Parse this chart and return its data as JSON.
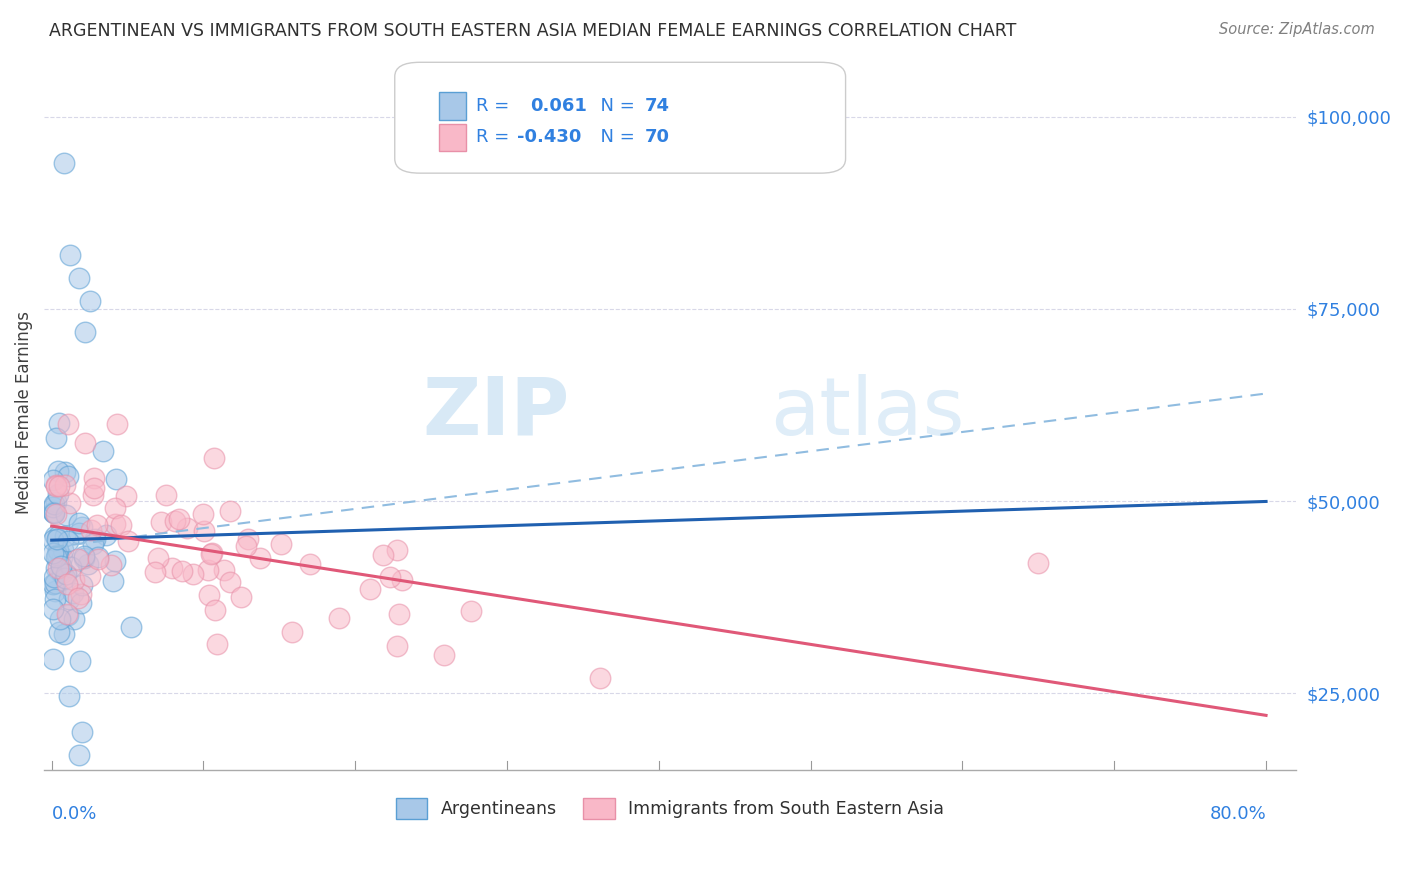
{
  "title": "ARGENTINEAN VS IMMIGRANTS FROM SOUTH EASTERN ASIA MEDIAN FEMALE EARNINGS CORRELATION CHART",
  "source": "Source: ZipAtlas.com",
  "ylabel": "Median Female Earnings",
  "yticks": [
    25000,
    50000,
    75000,
    100000
  ],
  "xlim": [
    -0.005,
    0.82
  ],
  "ylim": [
    15000,
    108000
  ],
  "watermark_part1": "ZIP",
  "watermark_part2": "atlas",
  "blue_scatter_face": "#a8c8e8",
  "blue_scatter_edge": "#5a9fd4",
  "pink_scatter_face": "#f9b8c8",
  "pink_scatter_edge": "#e890a8",
  "blue_line_color": "#2060b0",
  "pink_line_color": "#e05878",
  "dashed_line_color": "#90bce0",
  "legend_text_color": "#3080e0",
  "title_color": "#303030",
  "source_color": "#808080",
  "grid_color": "#d8d8e8",
  "blue_R": 0.061,
  "blue_N": 74,
  "pink_R": -0.43,
  "pink_N": 70,
  "ytick_color": "#3080e0",
  "xtick_color": "#3080e0",
  "scatter_size": 220,
  "scatter_alpha": 0.55
}
